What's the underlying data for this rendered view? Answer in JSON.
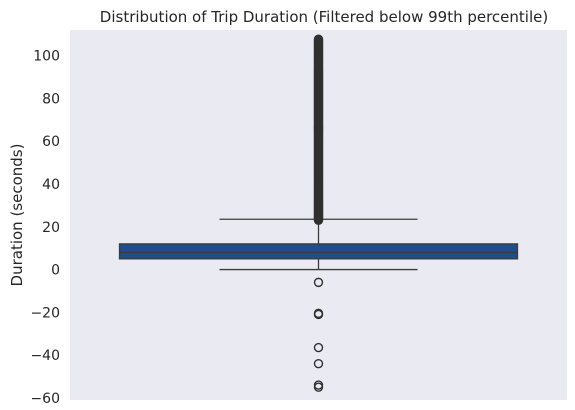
{
  "chart_data": {
    "type": "boxplot",
    "title": "Distribution of Trip Duration (Filtered below 99th percentile)",
    "xlabel": "",
    "ylabel": "Duration (seconds)",
    "ylim": [
      -61,
      112
    ],
    "yticks": [
      -60,
      -40,
      -20,
      0,
      20,
      40,
      60,
      80,
      100
    ],
    "grid": false,
    "legend": "none",
    "box": {
      "whisker_low": 0,
      "q1": 5,
      "median": 8,
      "q3": 12,
      "whisker_high": 23.5
    },
    "outliers_low": [
      -6,
      -20.5,
      -21,
      -36.5,
      -44,
      -54,
      -55
    ],
    "outliers_high_dense_range": [
      23,
      108
    ],
    "colors": {
      "plot_background": "#eaeaf2",
      "box_fill": "#1f4e8c",
      "lines": "#3b3b3b",
      "outlier_stroke": "#303030"
    }
  }
}
